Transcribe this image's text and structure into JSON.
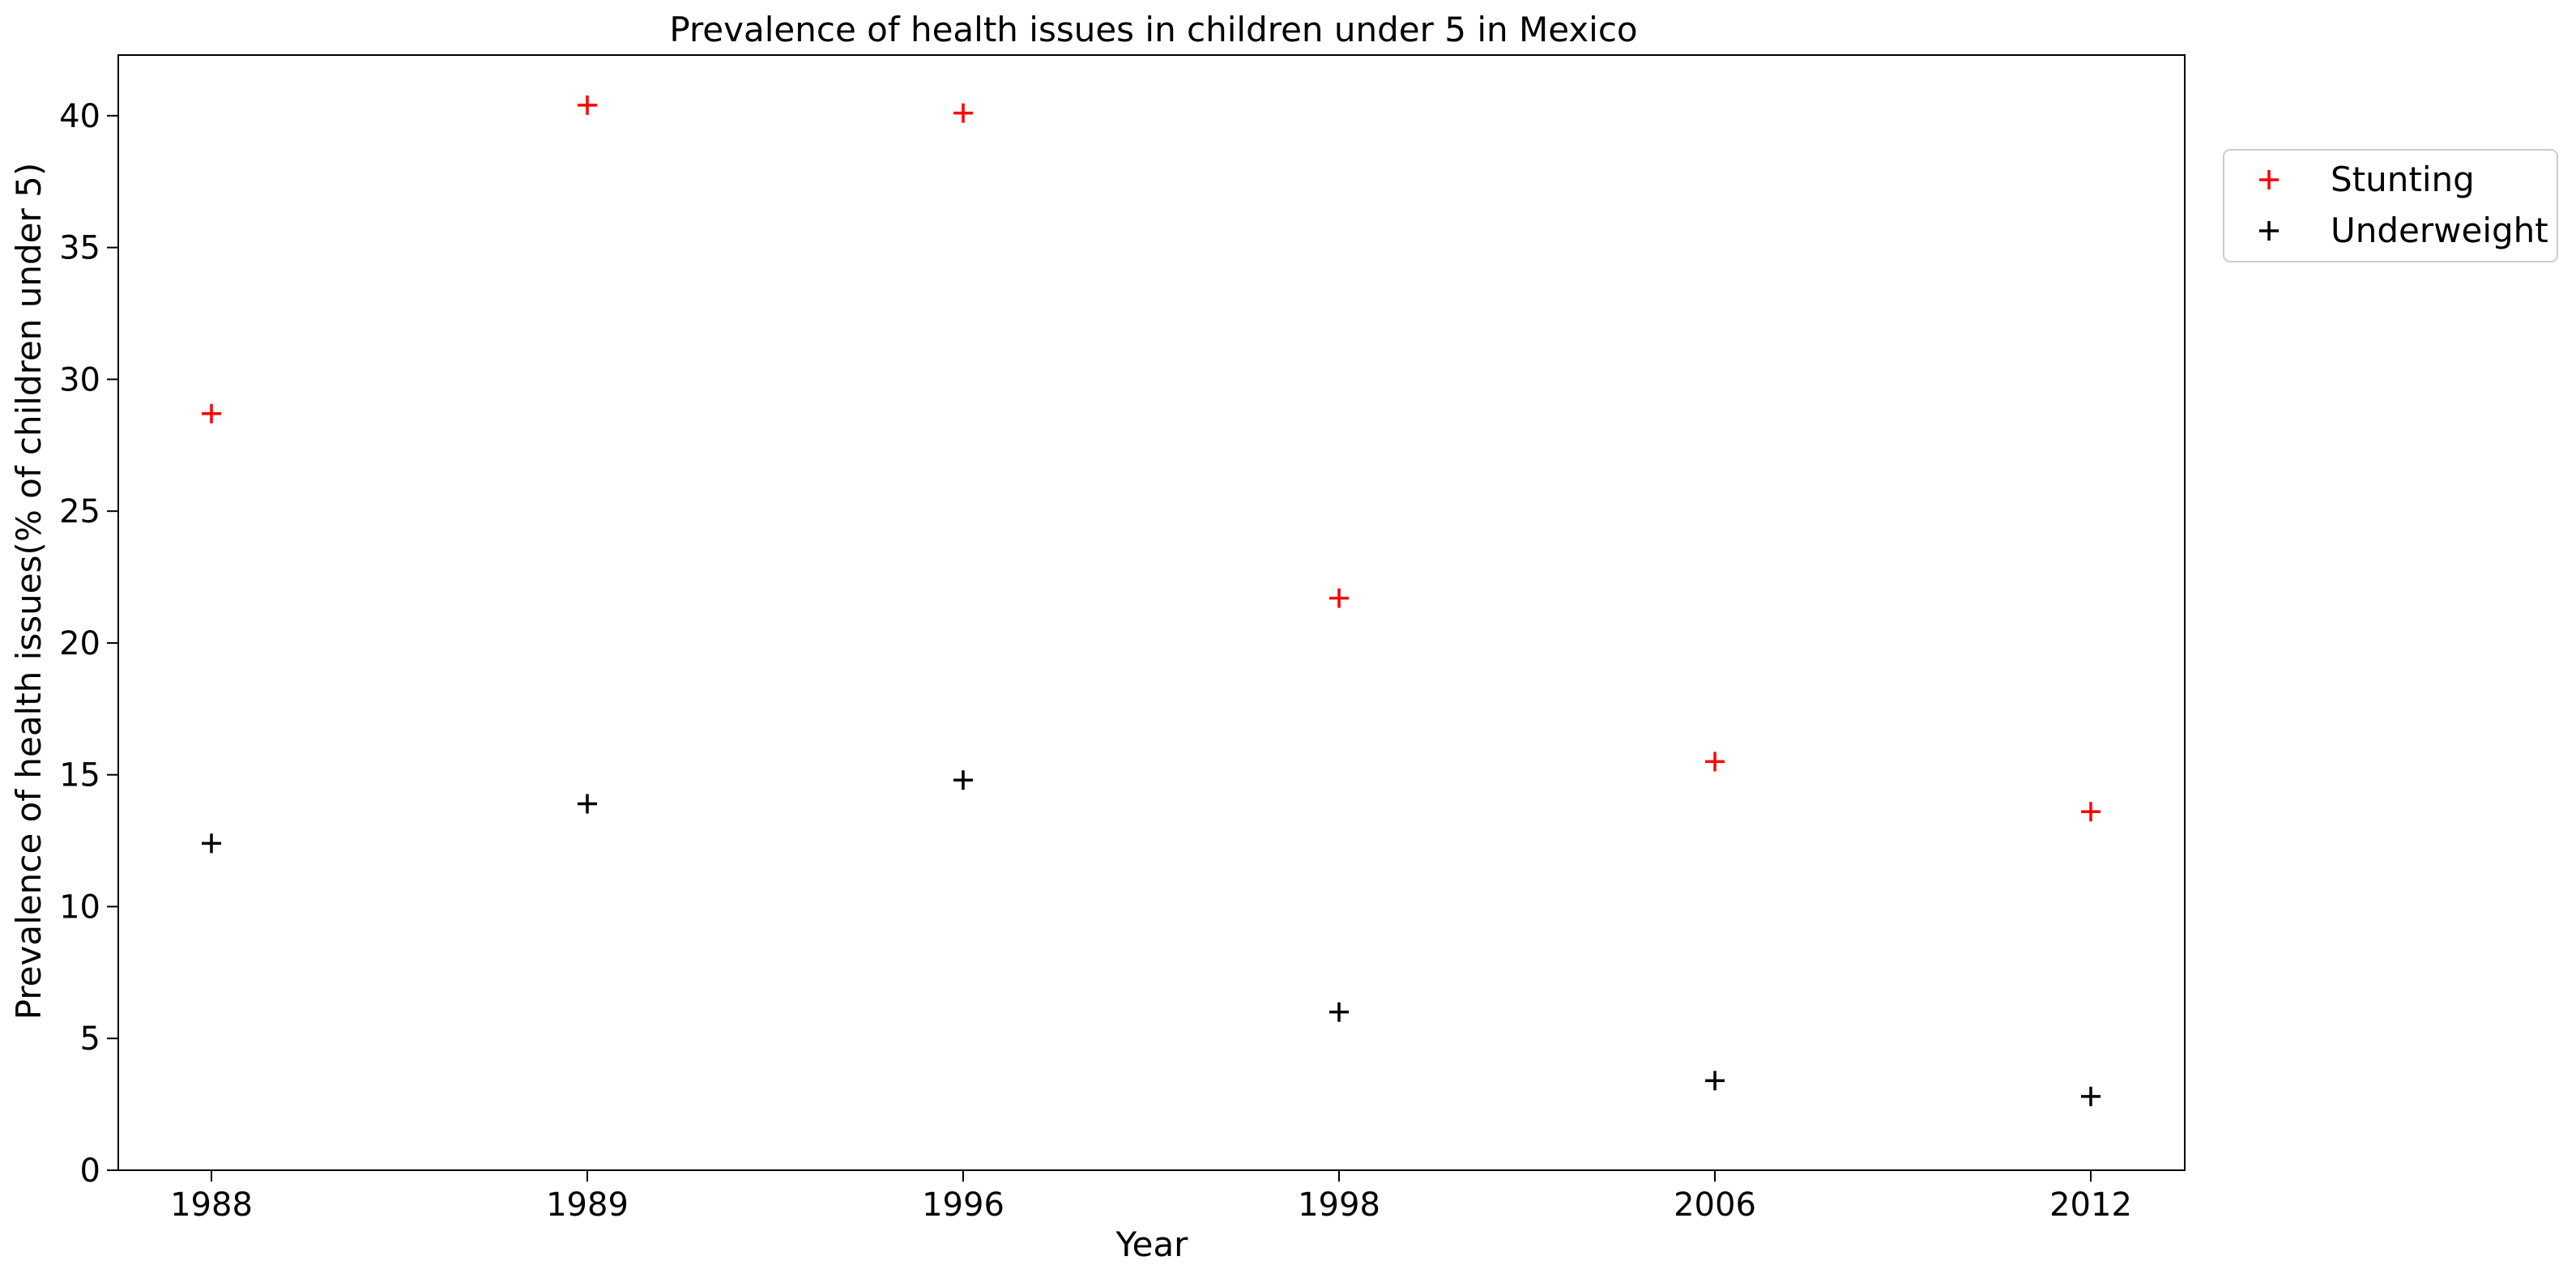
{
  "chart_data": {
    "type": "scatter",
    "title": "Prevalence of health issues in children under 5 in Mexico",
    "xlabel": "Year",
    "ylabel": "Prevalence of health issues(% of children under 5)",
    "categories": [
      "1988",
      "1989",
      "1996",
      "1998",
      "2006",
      "2012"
    ],
    "ylim": [
      0,
      42.3
    ],
    "yticks": [
      0,
      5,
      10,
      15,
      20,
      25,
      30,
      35,
      40
    ],
    "grid": false,
    "legend_position": "outside-top-right",
    "marker": "+",
    "series": [
      {
        "name": "Stunting",
        "color": "#ff0000",
        "values": [
          28.7,
          40.4,
          40.1,
          21.7,
          15.5,
          13.6
        ]
      },
      {
        "name": "Underweight",
        "color": "#000000",
        "values": [
          12.4,
          13.9,
          14.8,
          6.0,
          3.4,
          2.8
        ]
      }
    ]
  }
}
